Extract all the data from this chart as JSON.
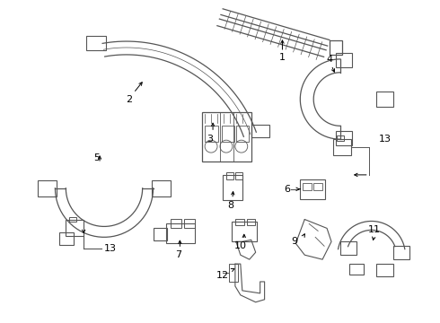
{
  "bg_color": "#ffffff",
  "lc": "#555555",
  "tc": "#000000",
  "fig_width": 4.9,
  "fig_height": 3.6,
  "dpi": 100
}
